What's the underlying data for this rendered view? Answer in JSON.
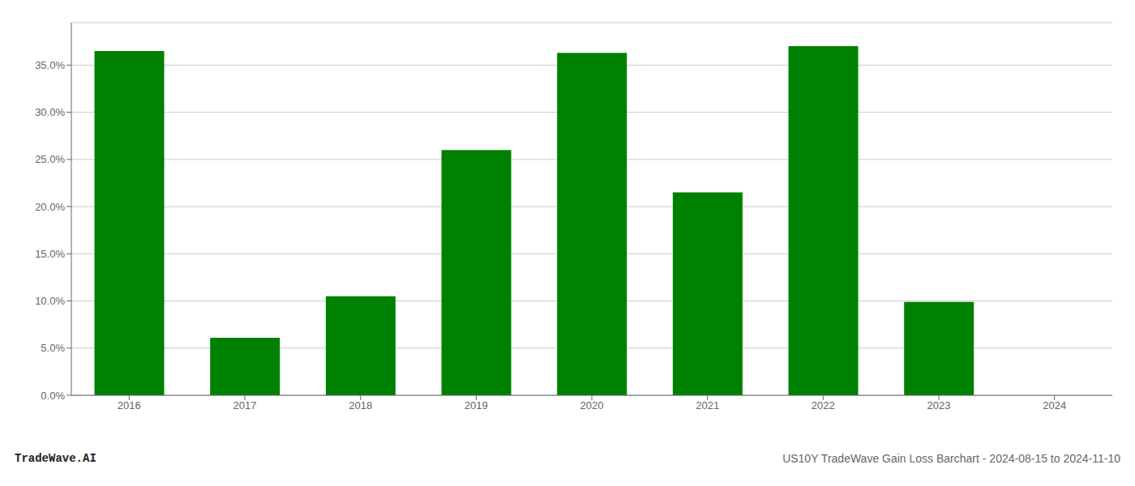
{
  "chart_data": {
    "type": "bar",
    "categories": [
      "2016",
      "2017",
      "2018",
      "2019",
      "2020",
      "2021",
      "2022",
      "2023",
      "2024"
    ],
    "values": [
      0.365,
      0.061,
      0.105,
      0.26,
      0.363,
      0.215,
      0.37,
      0.099,
      0.0
    ],
    "color": "#008000",
    "ylim": [
      0.0,
      0.395
    ],
    "yticks": [
      {
        "value": 0.0,
        "label": "0.0%"
      },
      {
        "value": 0.05,
        "label": "5.0%"
      },
      {
        "value": 0.1,
        "label": "10.0%"
      },
      {
        "value": 0.15,
        "label": "15.0%"
      },
      {
        "value": 0.2,
        "label": "20.0%"
      },
      {
        "value": 0.25,
        "label": "25.0%"
      },
      {
        "value": 0.3,
        "label": "30.0%"
      },
      {
        "value": 0.35,
        "label": "35.0%"
      }
    ],
    "grid": true,
    "annotations": [
      "TradeWave.AI",
      "US10Y TradeWave Gain Loss Barchart - 2024-08-15 to 2024-11-10"
    ]
  }
}
